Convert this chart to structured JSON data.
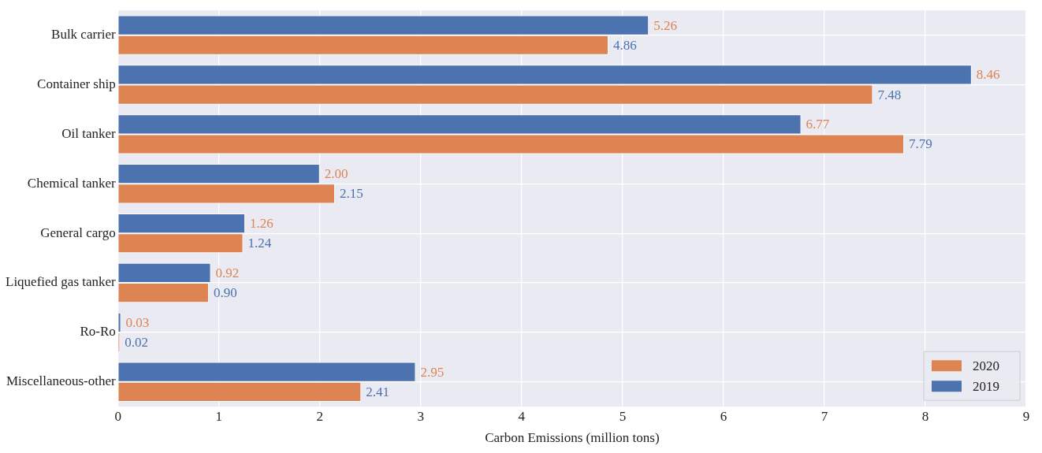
{
  "chart_data": {
    "type": "bar",
    "orientation": "horizontal",
    "xlabel": "Carbon Emissions (million tons)",
    "categories": [
      "Bulk carrier",
      "Container ship",
      "Oil tanker",
      "Chemical tanker",
      "General cargo",
      "Liquefied gas tanker",
      "Ro-Ro",
      "Miscellaneous-other"
    ],
    "series": [
      {
        "name": "2019",
        "color": "#4c72b0",
        "values": [
          5.26,
          8.46,
          6.77,
          2.0,
          1.26,
          0.92,
          0.03,
          2.95
        ],
        "value_labels": [
          "5.26",
          "8.46",
          "6.77",
          "2.00",
          "1.26",
          "0.92",
          "0.03",
          "2.95"
        ]
      },
      {
        "name": "2020",
        "color": "#dd8452",
        "values": [
          4.86,
          7.48,
          7.79,
          2.15,
          1.24,
          0.9,
          0.02,
          2.41
        ],
        "value_labels": [
          "4.86",
          "7.48",
          "7.79",
          "2.15",
          "1.24",
          "0.90",
          "0.02",
          "2.41"
        ]
      }
    ],
    "xlim": [
      0,
      9
    ],
    "xticks": [
      0,
      1,
      2,
      3,
      4,
      5,
      6,
      7,
      8,
      9
    ],
    "grid": true,
    "legend": "bottom right"
  }
}
